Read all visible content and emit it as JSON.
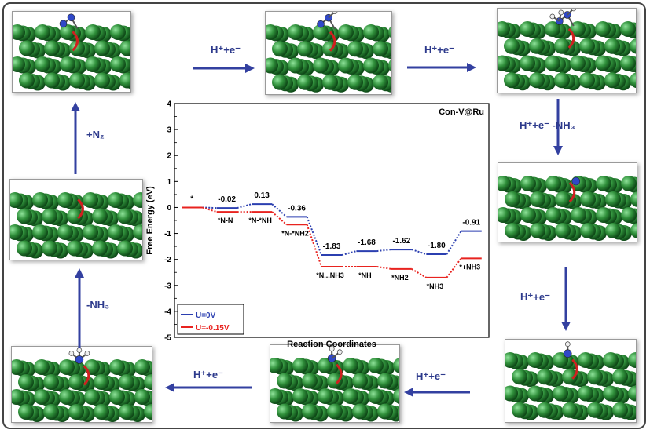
{
  "steps": {
    "right1": "H⁺+e⁻",
    "right2": "H⁺+e⁻",
    "down1": "H⁺+e⁻ -NH₃",
    "down2": "H⁺+e⁻",
    "left1": "H⁺+e⁻",
    "left2": "H⁺+e⁻",
    "up1": "-NH₃",
    "up2": "+N₂"
  },
  "colors": {
    "arrow": "#3340a0",
    "u0": "#2b3fb0",
    "u015": "#e8231f",
    "atom": "#2f8f3a",
    "vacancy": "#d02020"
  },
  "chart_data": {
    "type": "line",
    "title": "Con-V@Ru",
    "xlabel": "Reaction Coordinates",
    "ylabel": "Free Energy (eV)",
    "ylim": [
      -5,
      4
    ],
    "yticks": [
      4,
      3,
      2,
      1,
      0,
      -1,
      -2,
      -3,
      -4,
      -5
    ],
    "states": [
      "*",
      "*N-N",
      "*N-*NH",
      "*N-*NH2",
      "*N...NH3",
      "*NH",
      "*NH2",
      "*NH3",
      "*+NH3"
    ],
    "series": [
      {
        "name": "U=0V",
        "values": [
          0,
          -0.02,
          0.13,
          -0.36,
          -1.83,
          -1.68,
          -1.62,
          -1.8,
          -0.91
        ]
      },
      {
        "name": "U=-0.15V",
        "values": [
          0,
          -0.17,
          -0.17,
          -0.66,
          -2.28,
          -2.28,
          -2.37,
          -2.7,
          -1.96
        ]
      }
    ],
    "value_labels": [
      "*",
      "-0.02",
      "0.13",
      "-0.36",
      "-1.83",
      "-1.68",
      "-1.62",
      "-1.80",
      "-0.91"
    ],
    "legend": {
      "placement": "bottom-left",
      "entries": [
        "U=0V",
        "U=-0.15V"
      ]
    }
  }
}
